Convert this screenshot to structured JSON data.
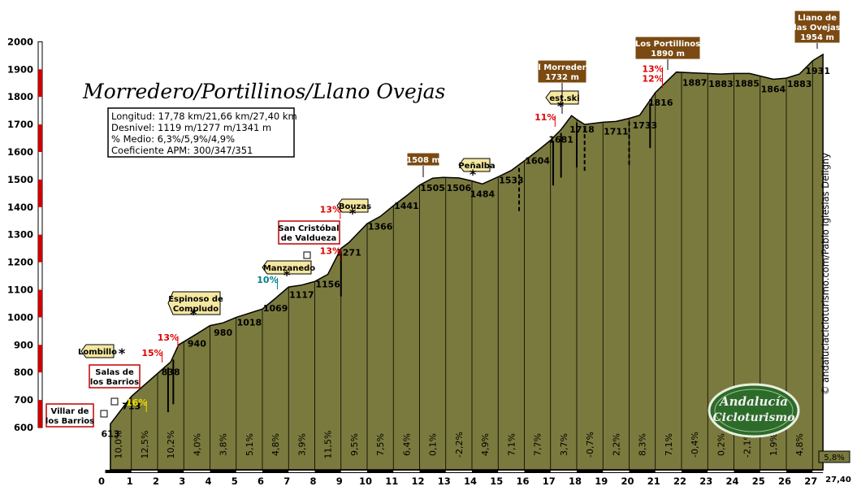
{
  "chart_data": {
    "type": "area",
    "title": "Morredero/Portillinos/Llano Ovejas",
    "credit": "© andaluciacicloturismo.com/Pablo Iglesias Deligny",
    "logo_text": [
      "Andalucía",
      "Cicloturismo"
    ],
    "stats": [
      "Longitud: 17,78 km/21,66 km/27,40 km",
      "Desnivel: 1119 m/1277 m/1341 m",
      "% Medio: 6,3%/5,9%/4,9%",
      "Coeficiente APM: 300/347/351"
    ],
    "y_ticks": [
      600,
      700,
      800,
      900,
      1000,
      1100,
      1200,
      1300,
      1400,
      1500,
      1600,
      1700,
      1800,
      1900,
      2000
    ],
    "x_ticks": [
      "0",
      "1",
      "2",
      "3",
      "4",
      "5",
      "6",
      "7",
      "8",
      "9",
      "10",
      "11",
      "12",
      "13",
      "14",
      "15",
      "16",
      "17",
      "18",
      "19",
      "20",
      "21",
      "22",
      "23",
      "24",
      "25",
      "26",
      "27"
    ],
    "ylim": [
      600,
      2000
    ],
    "xlim": [
      0,
      27.4
    ],
    "end_km_label": "27,40",
    "avg_label": "5,8%",
    "profile": [
      {
        "km": 0.2,
        "alt": 613
      },
      {
        "km": 1.0,
        "alt": 713
      },
      {
        "km": 2.5,
        "alt": 838
      },
      {
        "km": 2.8,
        "alt": 900
      },
      {
        "km": 3.5,
        "alt": 940
      },
      {
        "km": 4.0,
        "alt": 970
      },
      {
        "km": 4.5,
        "alt": 980
      },
      {
        "km": 5.0,
        "alt": 1000
      },
      {
        "km": 6.0,
        "alt": 1030
      },
      {
        "km": 6.5,
        "alt": 1069
      },
      {
        "km": 7.0,
        "alt": 1110
      },
      {
        "km": 7.5,
        "alt": 1117
      },
      {
        "km": 8.0,
        "alt": 1130
      },
      {
        "km": 8.5,
        "alt": 1156
      },
      {
        "km": 9.0,
        "alt": 1250
      },
      {
        "km": 9.3,
        "alt": 1271
      },
      {
        "km": 10.0,
        "alt": 1340
      },
      {
        "km": 10.5,
        "alt": 1366
      },
      {
        "km": 11.0,
        "alt": 1405
      },
      {
        "km": 11.5,
        "alt": 1441
      },
      {
        "km": 12.0,
        "alt": 1480
      },
      {
        "km": 12.5,
        "alt": 1505
      },
      {
        "km": 12.9,
        "alt": 1508
      },
      {
        "km": 13.5,
        "alt": 1506
      },
      {
        "km": 14.0,
        "alt": 1495
      },
      {
        "km": 14.4,
        "alt": 1484
      },
      {
        "km": 15.0,
        "alt": 1510
      },
      {
        "km": 15.5,
        "alt": 1533
      },
      {
        "km": 16.0,
        "alt": 1568
      },
      {
        "km": 16.5,
        "alt": 1604
      },
      {
        "km": 17.0,
        "alt": 1643
      },
      {
        "km": 17.4,
        "alt": 1681
      },
      {
        "km": 17.8,
        "alt": 1732
      },
      {
        "km": 18.0,
        "alt": 1718
      },
      {
        "km": 18.3,
        "alt": 1700
      },
      {
        "km": 19.0,
        "alt": 1708
      },
      {
        "km": 19.5,
        "alt": 1711
      },
      {
        "km": 20.0,
        "alt": 1722
      },
      {
        "km": 20.4,
        "alt": 1733
      },
      {
        "km": 21.0,
        "alt": 1816
      },
      {
        "km": 21.8,
        "alt": 1890
      },
      {
        "km": 22.5,
        "alt": 1887
      },
      {
        "km": 23.5,
        "alt": 1883
      },
      {
        "km": 24.0,
        "alt": 1885
      },
      {
        "km": 24.6,
        "alt": 1885
      },
      {
        "km": 25.5,
        "alt": 1864
      },
      {
        "km": 26.0,
        "alt": 1868
      },
      {
        "km": 26.5,
        "alt": 1883
      },
      {
        "km": 27.0,
        "alt": 1931
      },
      {
        "km": 27.4,
        "alt": 1954
      }
    ],
    "point_labels": [
      {
        "km": 0.2,
        "alt": 613,
        "text": "613"
      },
      {
        "km": 1.0,
        "alt": 713,
        "text": "713"
      },
      {
        "km": 2.5,
        "alt": 838,
        "text": "838"
      },
      {
        "km": 3.5,
        "alt": 940,
        "text": "940"
      },
      {
        "km": 4.5,
        "alt": 980,
        "text": "980"
      },
      {
        "km": 5.5,
        "alt": 1018,
        "text": "1018"
      },
      {
        "km": 6.5,
        "alt": 1069,
        "text": "1069"
      },
      {
        "km": 7.5,
        "alt": 1117,
        "text": "1117"
      },
      {
        "km": 8.5,
        "alt": 1156,
        "text": "1156"
      },
      {
        "km": 9.3,
        "alt": 1271,
        "text": "1271"
      },
      {
        "km": 10.5,
        "alt": 1366,
        "text": "1366"
      },
      {
        "km": 11.5,
        "alt": 1441,
        "text": "1441"
      },
      {
        "km": 12.5,
        "alt": 1505,
        "text": "1505"
      },
      {
        "km": 13.5,
        "alt": 1506,
        "text": "1506"
      },
      {
        "km": 14.4,
        "alt": 1484,
        "text": "1484"
      },
      {
        "km": 15.5,
        "alt": 1533,
        "text": "1533"
      },
      {
        "km": 16.5,
        "alt": 1604,
        "text": "1604"
      },
      {
        "km": 17.4,
        "alt": 1681,
        "text": "1681"
      },
      {
        "km": 18.2,
        "alt": 1718,
        "text": "1718"
      },
      {
        "km": 19.5,
        "alt": 1711,
        "text": "1711"
      },
      {
        "km": 20.6,
        "alt": 1733,
        "text": "1733"
      },
      {
        "km": 21.2,
        "alt": 1816,
        "text": "1816"
      },
      {
        "km": 22.5,
        "alt": 1887,
        "text": "1887"
      },
      {
        "km": 23.5,
        "alt": 1883,
        "text": "1883"
      },
      {
        "km": 24.5,
        "alt": 1885,
        "text": "1885"
      },
      {
        "km": 25.5,
        "alt": 1864,
        "text": "1864"
      },
      {
        "km": 26.5,
        "alt": 1883,
        "text": "1883"
      },
      {
        "km": 27.2,
        "alt": 1931,
        "text": "1931"
      }
    ],
    "segment_gradients": [
      "10,0%",
      "12,5%",
      "10,2%",
      "4,0%",
      "3,8%",
      "5,1%",
      "4,8%",
      "3,9%",
      "11,5%",
      "9,5%",
      "7,5%",
      "6,4%",
      "0,1%",
      "-2,2%",
      "4,9%",
      "7,1%",
      "7,7%",
      "3,7%",
      "-0,7%",
      "2,2%",
      "8,3%",
      "7,1%",
      "-0,4%",
      "0,2%",
      "-2,1%",
      "1,9%",
      "4,8%"
    ],
    "ramp_labels": [
      {
        "km": 1.2,
        "alt": 680,
        "text": "16%",
        "color": "#f0e000"
      },
      {
        "km": 1.8,
        "alt": 860,
        "text": "15%",
        "color": "#e00000"
      },
      {
        "km": 2.4,
        "alt": 915,
        "text": "13%",
        "color": "#e00000"
      },
      {
        "km": 6.2,
        "alt": 1125,
        "text": "10%",
        "color": "#00808a"
      },
      {
        "km": 8.6,
        "alt": 1230,
        "text": "13%",
        "color": "#e00000"
      },
      {
        "km": 8.6,
        "alt": 1380,
        "text": "13%",
        "color": "#e00000"
      },
      {
        "km": 16.8,
        "alt": 1715,
        "text": "11%",
        "color": "#e00000"
      },
      {
        "km": 20.9,
        "alt": 1890,
        "text": "13%",
        "color": "#e00000"
      },
      {
        "km": 20.9,
        "alt": 1855,
        "text": "12%",
        "color": "#e00000"
      }
    ],
    "place_labels": [
      {
        "text": [
          "Villar de",
          "los Barrios"
        ],
        "style": "red-box"
      },
      {
        "text": [
          "Salas de",
          "los Barrios"
        ],
        "style": "red-box"
      },
      {
        "text": [
          "San Cristóbal",
          "de Valdueza"
        ],
        "style": "red-box"
      },
      {
        "text": [
          "Lombillo"
        ],
        "style": "tag"
      },
      {
        "text": [
          "Espinoso de",
          "Compludo"
        ],
        "style": "tag"
      },
      {
        "text": [
          "Manzanedo"
        ],
        "style": "tag"
      },
      {
        "text": [
          "Bouzas"
        ],
        "style": "tag"
      },
      {
        "text": [
          "Peñalba"
        ],
        "style": "tag"
      },
      {
        "text": [
          "est.ski"
        ],
        "style": "tag"
      },
      {
        "text": [
          "1508 m"
        ],
        "style": "brown-box"
      },
      {
        "text": [
          "El Morredero",
          "1732 m"
        ],
        "style": "brown-box"
      },
      {
        "text": [
          "Los Portillinos",
          "1890 m"
        ],
        "style": "brown-box"
      },
      {
        "text": [
          "Llano de",
          "las Ovejas",
          "1954 m"
        ],
        "style": "brown-box"
      }
    ],
    "colors": {
      "fill": "#7a7a3e",
      "outline": "#000000",
      "axis_red": "#d00000",
      "brown_box": "#7a4a12",
      "tag_fill": "#f4e7a0"
    }
  }
}
